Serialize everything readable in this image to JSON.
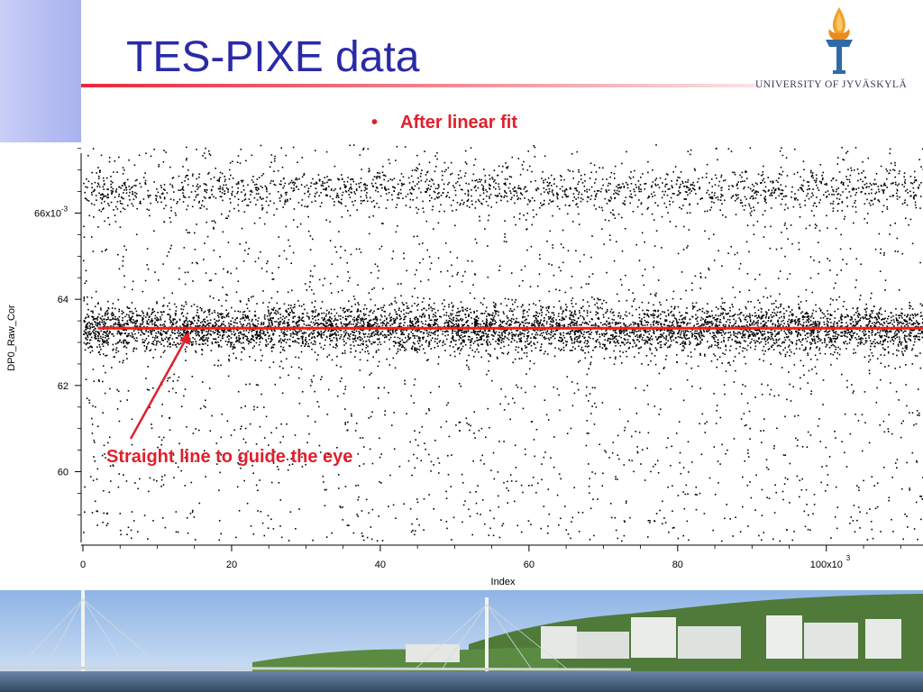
{
  "slide": {
    "title": "TES-PIXE data",
    "logo_text": "UNIVERSITY OF JYVÄSKYLÄ",
    "bullet_marker": "•",
    "bullet_text": "After linear fit",
    "annotation": "Straight line to guide the eye"
  },
  "colors": {
    "title": "#2a2aa8",
    "accent_red": "#e0202c",
    "points": "#000000",
    "fit_line": "#ff1a1a",
    "sidebar": "#b4bcf2"
  },
  "chart_data": {
    "type": "scatter",
    "title": "",
    "xlabel": "Index",
    "ylabel": "DP0_Raw_Cor",
    "x_tick_labels": [
      "0",
      "20",
      "40",
      "60",
      "80",
      "100x10"
    ],
    "x_tick_values": [
      0,
      20000,
      40000,
      60000,
      80000,
      100000
    ],
    "x_exponent": "3",
    "y_tick_labels": [
      "60",
      "62",
      "64",
      "66x10"
    ],
    "y_tick_values": [
      0.06,
      0.062,
      0.064,
      0.066
    ],
    "y_exponent": "-3",
    "xlim": [
      0,
      113000
    ],
    "ylim": [
      0.0584,
      0.0676
    ],
    "grid": false,
    "series": [
      {
        "name": "",
        "description_of_distribution": "",
        "main_band_center": 0.06333,
        "main_band_halfwidth": 0.0003,
        "upper_band_center": 0.06654,
        "upper_band_halfwidth": 0.00025
      }
    ],
    "fit_line": {
      "y": 0.06333,
      "x_start": 2000,
      "x_end": 113000
    }
  }
}
